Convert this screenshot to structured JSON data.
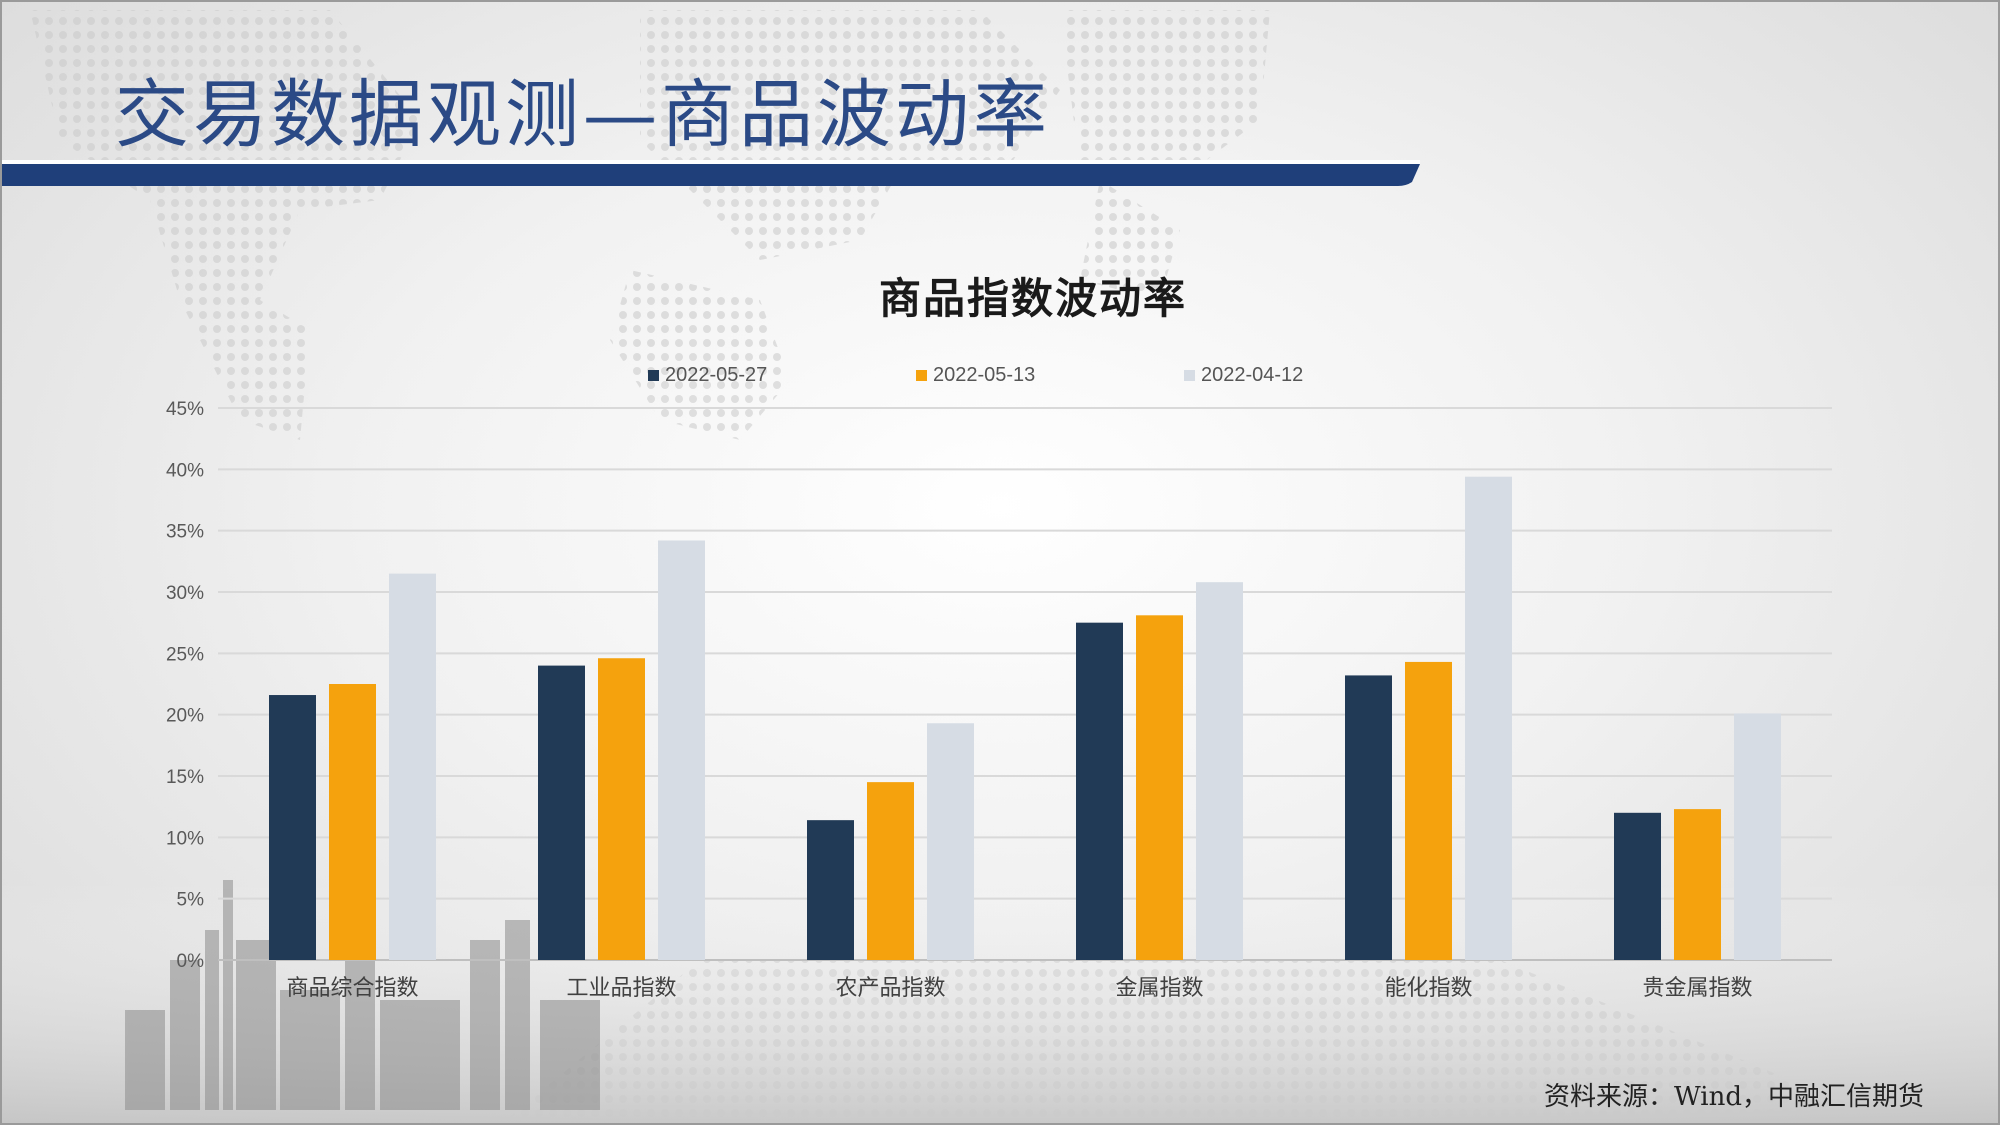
{
  "slide": {
    "title": "交易数据观测—商品波动率",
    "source": "资料来源：Wind，中融汇信期货",
    "colors": {
      "title": "#2b4a86",
      "band": "#1f3f7a"
    }
  },
  "chart_data": {
    "type": "bar",
    "title": "商品指数波动率",
    "categories": [
      "商品综合指数",
      "工业品指数",
      "农产品指数",
      "金属指数",
      "能化指数",
      "贵金属指数"
    ],
    "series": [
      {
        "name": "2022-05-27",
        "color": "#213a56",
        "values": [
          21.6,
          24.0,
          11.4,
          27.5,
          23.2,
          12.0
        ]
      },
      {
        "name": "2022-05-13",
        "color": "#f5a20d",
        "values": [
          22.5,
          24.6,
          14.5,
          28.1,
          24.3,
          12.3
        ]
      },
      {
        "name": "2022-04-12",
        "color": "#d6dce4",
        "values": [
          31.5,
          34.2,
          19.3,
          30.8,
          39.4,
          20.1
        ]
      }
    ],
    "ylim": [
      0,
      45
    ],
    "yticks": [
      "0%",
      "5%",
      "10%",
      "15%",
      "20%",
      "25%",
      "30%",
      "35%",
      "40%",
      "45%"
    ],
    "grid": true,
    "legend_position": "top"
  }
}
